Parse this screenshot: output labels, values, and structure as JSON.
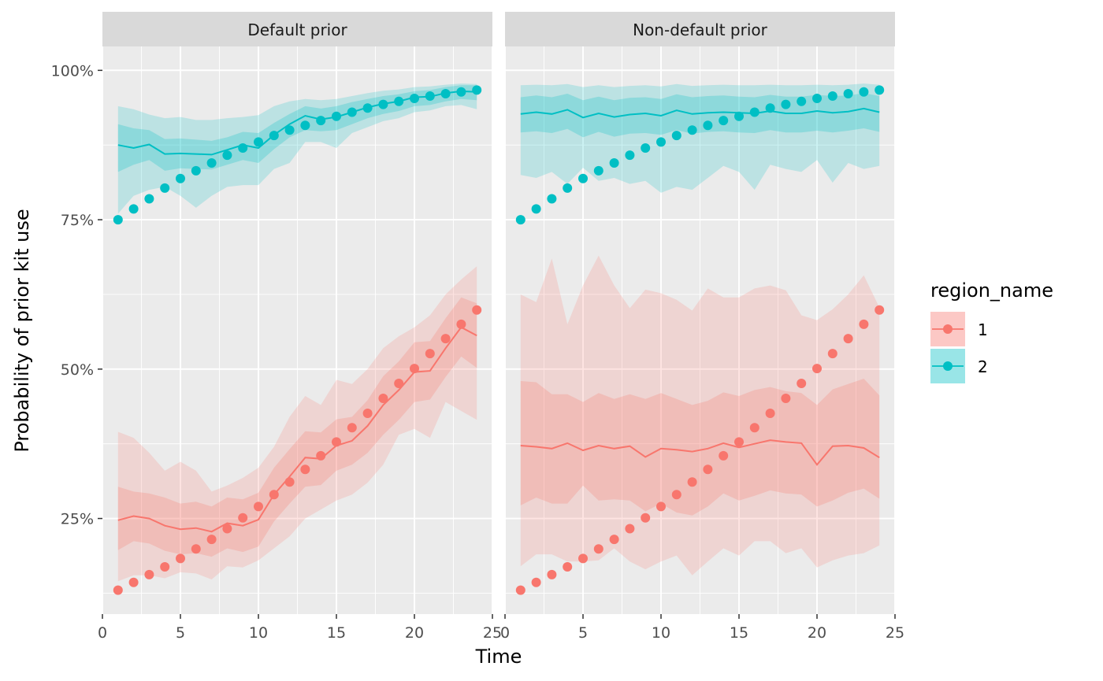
{
  "chart_data": {
    "type": "line",
    "xlabel": "Time",
    "ylabel": "Probability of prior kit use",
    "xlim": [
      0,
      25
    ],
    "ylim": [
      0.09,
      1.04
    ],
    "x_ticks": [
      "0",
      "5",
      "10",
      "15",
      "20",
      "25"
    ],
    "y_ticks": [
      "25%",
      "50%",
      "75%",
      "100%"
    ],
    "legend": {
      "title": "region_name",
      "position": "right",
      "entries": [
        "1",
        "2"
      ]
    },
    "colors": {
      "1": "#F8766D",
      "2": "#00BFC4",
      "panel_bg": "#EBEBEB",
      "strip_bg": "#D9D9D9",
      "grid": "#FFFFFF"
    },
    "x": [
      1,
      2,
      3,
      4,
      5,
      6,
      7,
      8,
      9,
      10,
      11,
      12,
      13,
      14,
      15,
      16,
      17,
      18,
      19,
      20,
      21,
      22,
      23,
      24
    ],
    "panels": [
      {
        "title": "Default prior",
        "series": [
          {
            "name": "1",
            "points": [
              0.13,
              0.143,
              0.156,
              0.169,
              0.183,
              0.199,
              0.215,
              0.233,
              0.251,
              0.27,
              0.29,
              0.311,
              0.332,
              0.355,
              0.378,
              0.402,
              0.426,
              0.451,
              0.476,
              0.501,
              0.526,
              0.551,
              0.575,
              0.599
            ],
            "line": [
              0.247,
              0.254,
              0.25,
              0.238,
              0.232,
              0.234,
              0.228,
              0.242,
              0.238,
              0.248,
              0.29,
              0.32,
              0.352,
              0.35,
              0.372,
              0.38,
              0.405,
              0.44,
              0.465,
              0.495,
              0.497,
              0.535,
              0.57,
              0.556
            ],
            "inner_lo": [
              0.197,
              0.212,
              0.208,
              0.196,
              0.19,
              0.192,
              0.186,
              0.2,
              0.194,
              0.203,
              0.245,
              0.275,
              0.303,
              0.306,
              0.33,
              0.34,
              0.36,
              0.39,
              0.415,
              0.445,
              0.449,
              0.487,
              0.521,
              0.502
            ],
            "inner_hi": [
              0.303,
              0.295,
              0.292,
              0.285,
              0.275,
              0.278,
              0.27,
              0.285,
              0.282,
              0.293,
              0.335,
              0.366,
              0.396,
              0.394,
              0.416,
              0.42,
              0.448,
              0.488,
              0.513,
              0.545,
              0.547,
              0.585,
              0.62,
              0.61
            ],
            "outer_lo": [
              0.145,
              0.155,
              0.155,
              0.15,
              0.16,
              0.158,
              0.148,
              0.17,
              0.168,
              0.18,
              0.2,
              0.22,
              0.25,
              0.265,
              0.28,
              0.29,
              0.31,
              0.34,
              0.39,
              0.4,
              0.385,
              0.445,
              0.43,
              0.415
            ],
            "outer_hi": [
              0.395,
              0.385,
              0.36,
              0.33,
              0.345,
              0.33,
              0.295,
              0.305,
              0.318,
              0.335,
              0.37,
              0.42,
              0.455,
              0.44,
              0.482,
              0.475,
              0.5,
              0.535,
              0.555,
              0.57,
              0.59,
              0.625,
              0.65,
              0.672
            ]
          },
          {
            "name": "2",
            "points": [
              0.75,
              0.768,
              0.785,
              0.803,
              0.819,
              0.832,
              0.845,
              0.858,
              0.87,
              0.88,
              0.891,
              0.9,
              0.908,
              0.916,
              0.923,
              0.93,
              0.937,
              0.943,
              0.948,
              0.953,
              0.957,
              0.961,
              0.964,
              0.967
            ],
            "line": [
              0.875,
              0.87,
              0.876,
              0.86,
              0.861,
              0.86,
              0.859,
              0.867,
              0.875,
              0.87,
              0.892,
              0.91,
              0.924,
              0.918,
              0.922,
              0.93,
              0.938,
              0.944,
              0.948,
              0.955,
              0.956,
              0.962,
              0.965,
              0.964
            ],
            "inner_lo": [
              0.83,
              0.842,
              0.85,
              0.832,
              0.836,
              0.835,
              0.834,
              0.842,
              0.85,
              0.845,
              0.868,
              0.888,
              0.9,
              0.898,
              0.9,
              0.91,
              0.92,
              0.927,
              0.932,
              0.94,
              0.942,
              0.948,
              0.952,
              0.95
            ],
            "inner_hi": [
              0.91,
              0.903,
              0.9,
              0.885,
              0.886,
              0.884,
              0.882,
              0.888,
              0.897,
              0.895,
              0.912,
              0.927,
              0.94,
              0.936,
              0.94,
              0.947,
              0.952,
              0.957,
              0.96,
              0.965,
              0.967,
              0.972,
              0.975,
              0.975
            ],
            "outer_lo": [
              0.76,
              0.79,
              0.8,
              0.805,
              0.79,
              0.77,
              0.79,
              0.805,
              0.808,
              0.808,
              0.835,
              0.845,
              0.88,
              0.88,
              0.87,
              0.895,
              0.905,
              0.915,
              0.92,
              0.93,
              0.933,
              0.94,
              0.942,
              0.935
            ],
            "outer_hi": [
              0.94,
              0.935,
              0.926,
              0.92,
              0.922,
              0.917,
              0.917,
              0.92,
              0.922,
              0.925,
              0.94,
              0.948,
              0.952,
              0.95,
              0.952,
              0.957,
              0.962,
              0.966,
              0.968,
              0.972,
              0.973,
              0.976,
              0.978,
              0.977
            ]
          }
        ]
      },
      {
        "title": "Non-default prior",
        "series": [
          {
            "name": "1",
            "points": [
              0.13,
              0.143,
              0.156,
              0.169,
              0.183,
              0.199,
              0.215,
              0.233,
              0.251,
              0.27,
              0.29,
              0.311,
              0.332,
              0.355,
              0.378,
              0.402,
              0.426,
              0.451,
              0.476,
              0.501,
              0.526,
              0.551,
              0.575,
              0.599
            ],
            "line": [
              0.372,
              0.37,
              0.367,
              0.376,
              0.364,
              0.372,
              0.367,
              0.371,
              0.353,
              0.367,
              0.365,
              0.362,
              0.367,
              0.376,
              0.369,
              0.375,
              0.381,
              0.378,
              0.376,
              0.34,
              0.371,
              0.372,
              0.368,
              0.352
            ],
            "inner_lo": [
              0.272,
              0.285,
              0.275,
              0.275,
              0.305,
              0.28,
              0.282,
              0.28,
              0.262,
              0.275,
              0.26,
              0.255,
              0.27,
              0.292,
              0.28,
              0.288,
              0.297,
              0.292,
              0.29,
              0.27,
              0.28,
              0.293,
              0.3,
              0.283
            ],
            "inner_hi": [
              0.48,
              0.478,
              0.458,
              0.458,
              0.445,
              0.46,
              0.45,
              0.458,
              0.45,
              0.46,
              0.45,
              0.44,
              0.447,
              0.461,
              0.455,
              0.465,
              0.47,
              0.463,
              0.46,
              0.44,
              0.466,
              0.475,
              0.484,
              0.456
            ],
            "outer_lo": [
              0.17,
              0.19,
              0.19,
              0.178,
              0.178,
              0.18,
              0.2,
              0.178,
              0.165,
              0.178,
              0.188,
              0.155,
              0.178,
              0.2,
              0.188,
              0.212,
              0.212,
              0.192,
              0.2,
              0.168,
              0.18,
              0.188,
              0.192,
              0.205
            ],
            "outer_hi": [
              0.625,
              0.612,
              0.685,
              0.575,
              0.64,
              0.69,
              0.64,
              0.602,
              0.633,
              0.627,
              0.616,
              0.598,
              0.635,
              0.62,
              0.62,
              0.635,
              0.64,
              0.632,
              0.59,
              0.582,
              0.6,
              0.625,
              0.657,
              0.603
            ]
          },
          {
            "name": "2",
            "points": [
              0.75,
              0.768,
              0.785,
              0.803,
              0.819,
              0.832,
              0.845,
              0.858,
              0.87,
              0.88,
              0.891,
              0.9,
              0.908,
              0.916,
              0.923,
              0.93,
              0.937,
              0.943,
              0.948,
              0.953,
              0.957,
              0.961,
              0.964,
              0.967
            ],
            "line": [
              0.927,
              0.93,
              0.927,
              0.934,
              0.921,
              0.928,
              0.922,
              0.926,
              0.928,
              0.924,
              0.933,
              0.927,
              0.929,
              0.93,
              0.929,
              0.928,
              0.932,
              0.928,
              0.928,
              0.932,
              0.929,
              0.931,
              0.936,
              0.93
            ],
            "inner_lo": [
              0.896,
              0.898,
              0.895,
              0.902,
              0.888,
              0.897,
              0.889,
              0.894,
              0.895,
              0.892,
              0.9,
              0.894,
              0.897,
              0.898,
              0.896,
              0.895,
              0.9,
              0.896,
              0.896,
              0.899,
              0.896,
              0.899,
              0.903,
              0.897
            ],
            "inner_hi": [
              0.955,
              0.958,
              0.955,
              0.961,
              0.95,
              0.956,
              0.95,
              0.954,
              0.955,
              0.952,
              0.96,
              0.955,
              0.957,
              0.958,
              0.956,
              0.955,
              0.959,
              0.956,
              0.956,
              0.959,
              0.957,
              0.958,
              0.962,
              0.957
            ],
            "outer_lo": [
              0.825,
              0.82,
              0.83,
              0.81,
              0.837,
              0.815,
              0.82,
              0.81,
              0.815,
              0.795,
              0.805,
              0.8,
              0.82,
              0.84,
              0.83,
              0.8,
              0.842,
              0.835,
              0.83,
              0.85,
              0.812,
              0.845,
              0.835,
              0.84
            ],
            "outer_hi": [
              0.975,
              0.976,
              0.975,
              0.977,
              0.972,
              0.975,
              0.972,
              0.974,
              0.975,
              0.973,
              0.977,
              0.974,
              0.975,
              0.976,
              0.975,
              0.975,
              0.976,
              0.975,
              0.975,
              0.976,
              0.975,
              0.976,
              0.978,
              0.976
            ]
          }
        ]
      }
    ]
  }
}
